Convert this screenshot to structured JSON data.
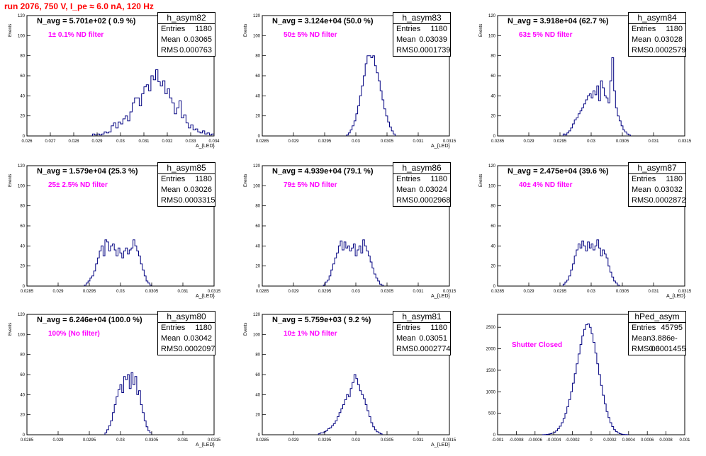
{
  "page": {
    "title": "run 2076,   750 V, I_pe ≈ 6.0 nA, 120 Hz"
  },
  "chart_data": [
    {
      "name": "h_asym82",
      "type": "bar",
      "entries": "1180",
      "mean": "0.03065",
      "rms": "0.000763",
      "n_avg": "N_avg = 5.701e+02 ( 0.9 %)",
      "filter": "1± 0.1% ND filter",
      "xlabel": "A_{LED}",
      "ylabel": "Events",
      "xlim": [
        0.026,
        0.034
      ],
      "ylim": [
        0,
        120
      ],
      "xticks": [
        0.026,
        0.027,
        0.028,
        0.029,
        0.03,
        0.031,
        0.032,
        0.033,
        0.034
      ],
      "xtick_labels": [
        "0.026",
        "0.027",
        "0.028",
        "0.029",
        "0.03",
        "0.031",
        "0.032",
        "0.033",
        "0.034"
      ],
      "yticks": [
        0,
        20,
        40,
        60,
        80,
        100,
        120
      ],
      "hist": {
        "start": 0.0288,
        "width": 0.0001,
        "values": [
          2,
          1,
          2,
          1,
          2,
          4,
          3,
          4,
          10,
          13,
          8,
          14,
          12,
          17,
          20,
          15,
          24,
          33,
          38,
          38,
          30,
          42,
          49,
          51,
          45,
          60,
          56,
          66,
          54,
          50,
          55,
          42,
          47,
          38,
          33,
          22,
          28,
          35,
          18,
          21,
          13,
          8,
          11,
          6,
          7,
          4,
          3,
          5,
          2,
          3,
          1,
          2
        ]
      }
    },
    {
      "name": "h_asym83",
      "type": "bar",
      "entries": "1180",
      "mean": "0.03039",
      "rms": "0.0001739",
      "n_avg": "N_avg = 3.124e+04 (50.0 %)",
      "filter": "50± 5% ND filter",
      "xlabel": "A_{LED}",
      "ylabel": "Events",
      "xlim": [
        0.0285,
        0.0315
      ],
      "ylim": [
        0,
        120
      ],
      "xticks": [
        0.0285,
        0.029,
        0.0295,
        0.03,
        0.0305,
        0.031,
        0.0315
      ],
      "xtick_labels": [
        "0.0285",
        "0.029",
        "0.0295",
        "0.03",
        "0.0305",
        "0.031",
        "0.0315"
      ],
      "yticks": [
        0,
        20,
        40,
        60,
        80,
        100,
        120
      ],
      "hist": {
        "start": 0.02985,
        "width": 3e-05,
        "values": [
          1,
          3,
          6,
          10,
          15,
          22,
          30,
          40,
          50,
          60,
          72,
          80,
          80,
          78,
          80,
          70,
          63,
          55,
          45,
          36,
          27,
          20,
          14,
          9,
          5,
          2
        ]
      }
    },
    {
      "name": "h_asym84",
      "type": "bar",
      "entries": "1180",
      "mean": "0.03028",
      "rms": "0.0002579",
      "n_avg": "N_avg = 3.918e+04 (62.7 %)",
      "filter": "63± 5% ND filter",
      "xlabel": "",
      "ylabel": "Events",
      "xlim": [
        0.0285,
        0.0315
      ],
      "ylim": [
        0,
        120
      ],
      "xticks": [
        0.0285,
        0.029,
        0.0295,
        0.03,
        0.0305,
        0.031,
        0.0315
      ],
      "xtick_labels": [
        "0.0285",
        "0.029",
        "0.0295",
        "0.03",
        "0.0305",
        "0.031",
        "0.0315"
      ],
      "yticks": [
        0,
        20,
        40,
        60,
        80,
        100,
        120
      ],
      "hist": {
        "start": 0.02955,
        "width": 3e-05,
        "values": [
          2,
          1,
          3,
          5,
          8,
          12,
          16,
          18,
          22,
          25,
          28,
          32,
          36,
          40,
          42,
          38,
          45,
          41,
          50,
          35,
          55,
          48,
          40,
          38,
          33,
          55,
          78,
          45,
          28,
          20,
          15,
          10,
          6,
          4,
          2,
          1
        ]
      }
    },
    {
      "name": "h_asym85",
      "type": "bar",
      "entries": "1180",
      "mean": "0.03026",
      "rms": "0.0003315",
      "n_avg": "N_avg = 1.579e+04 (25.3 %)",
      "filter": "25± 2.5% ND filter",
      "xlabel": "A_{LED}",
      "ylabel": "Events",
      "xlim": [
        0.0285,
        0.0315
      ],
      "ylim": [
        0,
        120
      ],
      "xticks": [
        0.0285,
        0.029,
        0.0295,
        0.03,
        0.0305,
        0.031,
        0.0315
      ],
      "xtick_labels": [
        "0.0285",
        "0.029",
        "0.0295",
        "0.03",
        "0.0305",
        "0.031",
        "0.0315"
      ],
      "yticks": [
        0,
        20,
        40,
        60,
        80,
        100,
        120
      ],
      "hist": {
        "start": 0.02942,
        "width": 3e-05,
        "values": [
          1,
          3,
          5,
          8,
          10,
          15,
          22,
          28,
          35,
          40,
          30,
          46,
          44,
          35,
          40,
          42,
          36,
          30,
          38,
          33,
          28,
          35,
          38,
          32,
          36,
          38,
          46,
          40,
          35,
          30,
          22,
          16,
          10,
          5,
          3,
          1
        ]
      }
    },
    {
      "name": "h_asym86",
      "type": "bar",
      "entries": "1180",
      "mean": "0.03024",
      "rms": "0.0002968",
      "n_avg": "N_avg = 4.939e+04 (79.1 %)",
      "filter": "79± 5% ND filter",
      "xlabel": "A_{LED}",
      "ylabel": "Events",
      "xlim": [
        0.0285,
        0.0315
      ],
      "ylim": [
        0,
        120
      ],
      "xticks": [
        0.0285,
        0.029,
        0.0295,
        0.03,
        0.0305,
        0.031,
        0.0315
      ],
      "xtick_labels": [
        "0.0285",
        "0.029",
        "0.0295",
        "0.03",
        "0.0305",
        "0.031",
        "0.0315"
      ],
      "yticks": [
        0,
        20,
        40,
        60,
        80,
        100,
        120
      ],
      "hist": {
        "start": 0.02948,
        "width": 3e-05,
        "values": [
          1,
          4,
          6,
          10,
          16,
          22,
          28,
          33,
          40,
          45,
          36,
          44,
          38,
          40,
          35,
          38,
          42,
          30,
          36,
          40,
          33,
          46,
          40,
          35,
          30,
          24,
          18,
          12,
          8,
          5,
          2,
          1
        ]
      }
    },
    {
      "name": "h_asym87",
      "type": "bar",
      "entries": "1180",
      "mean": "0.03032",
      "rms": "0.0002872",
      "n_avg": "N_avg = 2.475e+04 (39.6 %)",
      "filter": "40± 4% ND filter",
      "xlabel": "A_{LED}",
      "ylabel": "Events",
      "xlim": [
        0.0285,
        0.0315
      ],
      "ylim": [
        0,
        120
      ],
      "xticks": [
        0.0285,
        0.029,
        0.0295,
        0.03,
        0.0305,
        0.031,
        0.0315
      ],
      "xtick_labels": [
        "0.0285",
        "0.029",
        "0.0295",
        "0.03",
        "0.0305",
        "0.031",
        "0.0315"
      ],
      "yticks": [
        0,
        20,
        40,
        60,
        80,
        100,
        120
      ],
      "hist": {
        "start": 0.02955,
        "width": 3e-05,
        "values": [
          2,
          4,
          6,
          10,
          16,
          22,
          30,
          36,
          42,
          38,
          45,
          40,
          35,
          44,
          38,
          42,
          36,
          40,
          46,
          38,
          30,
          36,
          32,
          28,
          20,
          14,
          9,
          5,
          3,
          1
        ]
      }
    },
    {
      "name": "h_asym80",
      "type": "bar",
      "entries": "1180",
      "mean": "0.03042",
      "rms": "0.0002097",
      "n_avg": "N_avg = 6.246e+04 (100.0 %)",
      "filter": "100% (No filter)",
      "xlabel": "A_{LED}",
      "ylabel": "Events",
      "xlim": [
        0.0285,
        0.0315
      ],
      "ylim": [
        0,
        120
      ],
      "xticks": [
        0.0285,
        0.029,
        0.0295,
        0.03,
        0.0305,
        0.031,
        0.0315
      ],
      "xtick_labels": [
        "0.0285",
        "0.029",
        "0.0295",
        "0.03",
        "0.0305",
        "0.031",
        "0.0315"
      ],
      "yticks": [
        0,
        20,
        40,
        60,
        80,
        100,
        120
      ],
      "hist": {
        "start": 0.02975,
        "width": 3e-05,
        "values": [
          2,
          5,
          9,
          14,
          22,
          30,
          38,
          45,
          50,
          42,
          58,
          55,
          60,
          46,
          62,
          50,
          58,
          40,
          44,
          30,
          22,
          14,
          8,
          4,
          2
        ]
      }
    },
    {
      "name": "h_asym81",
      "type": "bar",
      "entries": "1180",
      "mean": "0.03051",
      "rms": "0.0002774",
      "n_avg": "N_avg = 5.759e+03 ( 9.2 %)",
      "filter": "10± 1% ND filter",
      "xlabel": "A_{LED}",
      "ylabel": "Events",
      "xlim": [
        0.0285,
        0.0315
      ],
      "ylim": [
        0,
        120
      ],
      "xticks": [
        0.0285,
        0.029,
        0.0295,
        0.03,
        0.0305,
        0.031,
        0.0315
      ],
      "xtick_labels": [
        "0.0285",
        "0.029",
        "0.0295",
        "0.03",
        "0.0305",
        "0.031",
        "0.0315"
      ],
      "yticks": [
        0,
        20,
        40,
        60,
        80,
        100,
        120
      ],
      "hist": {
        "start": 0.0294,
        "width": 3e-05,
        "values": [
          1,
          2,
          2,
          3,
          4,
          6,
          7,
          9,
          11,
          14,
          18,
          22,
          26,
          30,
          35,
          40,
          38,
          46,
          52,
          60,
          56,
          50,
          44,
          40,
          36,
          30,
          24,
          18,
          12,
          8,
          5,
          3,
          2,
          1
        ]
      }
    },
    {
      "name": "hPed_asym",
      "type": "bar",
      "entries": "45795",
      "mean": "3.886e-06",
      "rms": "0.0001455",
      "n_avg": "",
      "filter": "Shutter Closed",
      "xlabel": "",
      "ylabel": "",
      "xlim": [
        -0.001,
        0.001
      ],
      "ylim": [
        0,
        2800
      ],
      "xticks": [
        -0.001,
        -0.0008,
        -0.0006,
        -0.0004,
        -0.0002,
        0,
        0.0002,
        0.0004,
        0.0006,
        0.0008,
        0.001
      ],
      "xtick_labels": [
        "-0.001",
        "-0.0008",
        "-0.0006",
        "-0.0004",
        "-0.0002",
        "0",
        "0.0002",
        "0.0004",
        "0.0006",
        "0.0008",
        "0.001"
      ],
      "yticks": [
        0,
        500,
        1000,
        1500,
        2000,
        2500
      ],
      "hist": {
        "start": -0.00052,
        "width": 2e-05,
        "values": [
          2,
          4,
          8,
          15,
          25,
          40,
          60,
          90,
          140,
          200,
          280,
          380,
          500,
          650,
          820,
          1000,
          1200,
          1420,
          1650,
          1880,
          2100,
          2300,
          2450,
          2560,
          2580,
          2500,
          2350,
          2150,
          1900,
          1650,
          1400,
          1150,
          920,
          720,
          540,
          400,
          280,
          190,
          120,
          75,
          45,
          25,
          14,
          7,
          4,
          2
        ]
      }
    }
  ]
}
